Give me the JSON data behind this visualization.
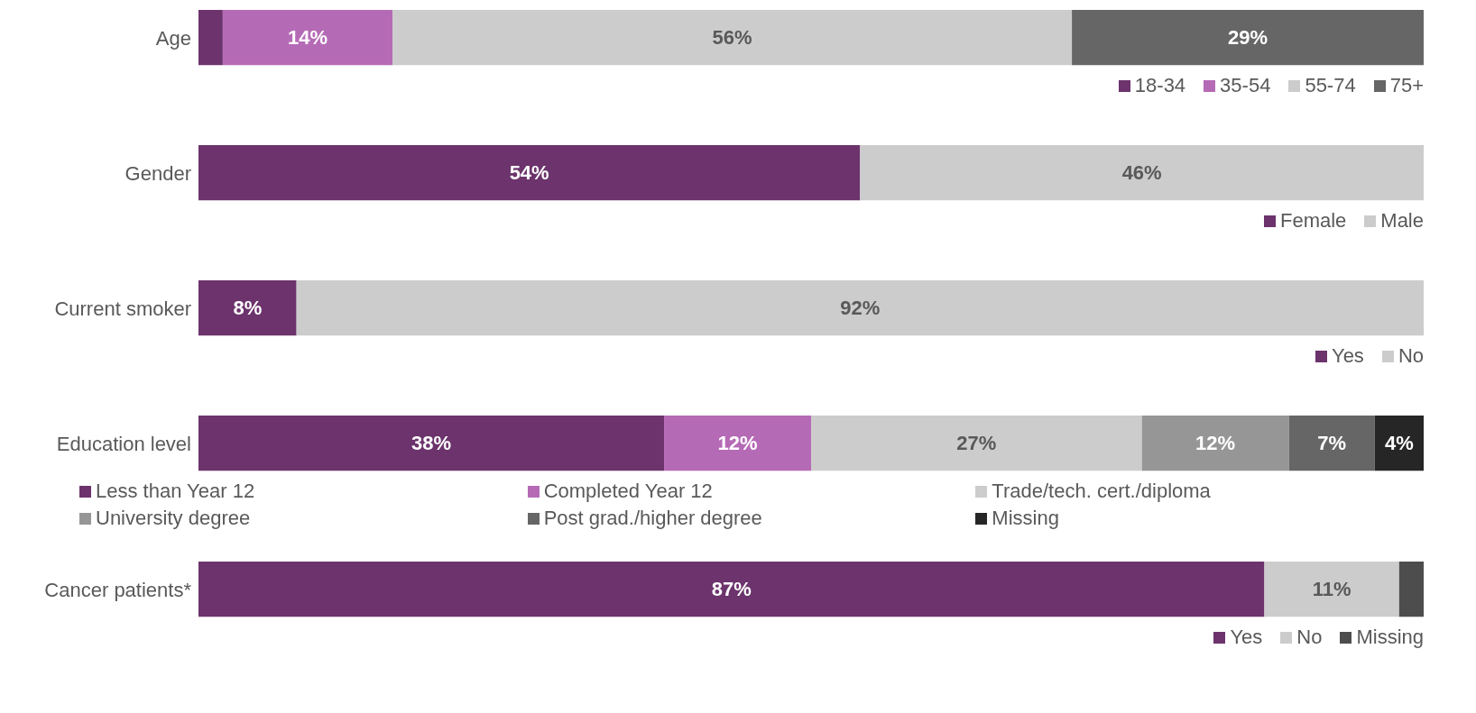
{
  "chart_data": [
    {
      "type": "bar",
      "orientation": "horizontal",
      "stacked": true,
      "categories": [
        "Age"
      ],
      "legend": "bottom right",
      "tick_labels": "y",
      "series": [
        {
          "name": "18-34",
          "color": "#6c336c",
          "values": [
            2
          ],
          "value_labels": [
            null
          ]
        },
        {
          "name": "35-54",
          "color": "#b56ab6",
          "values": [
            14
          ],
          "value_labels": [
            "14%"
          ]
        },
        {
          "name": "55-74",
          "color": "#cccccc",
          "values": [
            56
          ],
          "value_labels": [
            "56%"
          ]
        },
        {
          "name": "75+",
          "color": "#666666",
          "values": [
            29
          ],
          "value_labels": [
            "29%"
          ]
        }
      ]
    },
    {
      "type": "bar",
      "orientation": "horizontal",
      "stacked": true,
      "categories": [
        "Gender"
      ],
      "legend": "bottom right",
      "tick_labels": "y",
      "series": [
        {
          "name": "Female",
          "color": "#6c336c",
          "values": [
            54
          ],
          "value_labels": [
            "54%"
          ]
        },
        {
          "name": "Male",
          "color": "#cccccc",
          "values": [
            46
          ],
          "value_labels": [
            "46%"
          ]
        }
      ]
    },
    {
      "type": "bar",
      "orientation": "horizontal",
      "stacked": true,
      "categories": [
        "Current smoker"
      ],
      "legend": "bottom right",
      "tick_labels": "y",
      "series": [
        {
          "name": "Yes",
          "color": "#6c336c",
          "values": [
            8
          ],
          "value_labels": [
            "8%"
          ]
        },
        {
          "name": "No",
          "color": "#cccccc",
          "values": [
            92
          ],
          "value_labels": [
            "92%"
          ]
        }
      ]
    },
    {
      "type": "bar",
      "orientation": "horizontal",
      "stacked": true,
      "categories": [
        "Education level"
      ],
      "legend": "bottom",
      "tick_labels": "y",
      "series": [
        {
          "name": "Less than Year 12",
          "color": "#6c336c",
          "values": [
            38
          ],
          "value_labels": [
            "38%"
          ]
        },
        {
          "name": "Completed Year 12",
          "color": "#b56ab6",
          "values": [
            12
          ],
          "value_labels": [
            "12%"
          ]
        },
        {
          "name": "Trade/tech. cert./diploma",
          "color": "#cccccc",
          "values": [
            27
          ],
          "value_labels": [
            "27%"
          ]
        },
        {
          "name": "University degree",
          "color": "#969696",
          "values": [
            12
          ],
          "value_labels": [
            "12%"
          ]
        },
        {
          "name": "Post grad./higher degree",
          "color": "#666666",
          "values": [
            7
          ],
          "value_labels": [
            "7%"
          ]
        },
        {
          "name": "Missing",
          "color": "#262626",
          "values": [
            4
          ],
          "value_labels": [
            "4%"
          ]
        }
      ]
    },
    {
      "type": "bar",
      "orientation": "horizontal",
      "stacked": true,
      "categories": [
        "Cancer patients*"
      ],
      "legend": "bottom right",
      "tick_labels": "y",
      "series": [
        {
          "name": "Yes",
          "color": "#6c336c",
          "values": [
            87
          ],
          "value_labels": [
            "87%"
          ]
        },
        {
          "name": "No",
          "color": "#cccccc",
          "values": [
            11
          ],
          "value_labels": [
            "11%"
          ]
        },
        {
          "name": "Missing",
          "color": "#4d4d4d",
          "values": [
            2
          ],
          "value_labels": [
            null
          ]
        }
      ]
    }
  ]
}
